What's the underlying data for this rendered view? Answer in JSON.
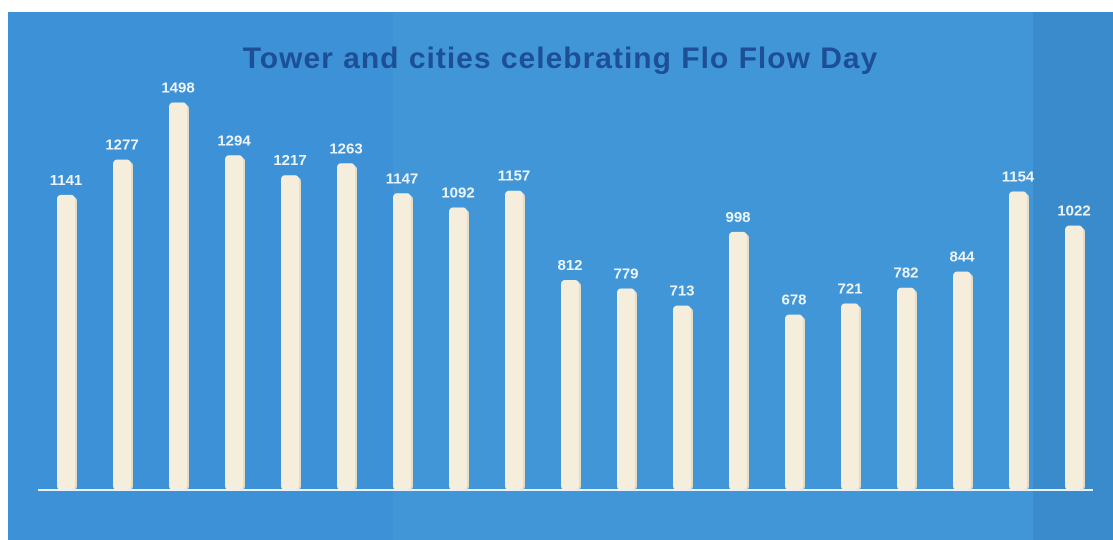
{
  "chart_data": {
    "type": "bar",
    "title": "Tower and cities celebrating Flo Flow Day",
    "xlabel": "",
    "ylabel": "",
    "ylim": [
      0,
      1500
    ],
    "grid": false,
    "legend": "none",
    "bar_color": "#f5eedc",
    "background_color": "#3b8fd4",
    "title_color": "#1d4f96",
    "categories": [
      "",
      "",
      "",
      "",
      "",
      "",
      "",
      "",
      "",
      "",
      "",
      "",
      "",
      "",
      "",
      "",
      "",
      "",
      ""
    ],
    "values": [
      1141,
      1277,
      1498,
      1294,
      1217,
      1263,
      1147,
      1092,
      1157,
      812,
      779,
      713,
      998,
      678,
      721,
      782,
      844,
      1154,
      1022
    ],
    "data_labels": [
      "1141",
      "1277",
      "1498",
      "1294",
      "1217",
      "1263",
      "1147",
      "1092",
      "1157",
      "812",
      "779",
      "713",
      "998",
      "678",
      "721",
      "782",
      "844",
      "1154",
      "1022"
    ]
  }
}
